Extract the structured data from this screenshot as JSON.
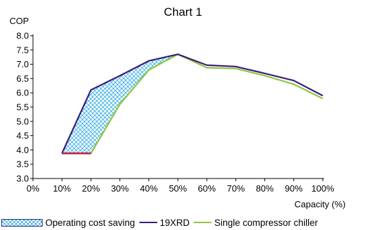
{
  "chart_data": {
    "type": "line",
    "title": "Chart 1",
    "xlabel": "Capacity (%)",
    "ylabel": "COP",
    "x": [
      10,
      20,
      30,
      40,
      50,
      60,
      70,
      80,
      90,
      100
    ],
    "x_ticks": [
      "0%",
      "10%",
      "20%",
      "30%",
      "40%",
      "50%",
      "60%",
      "70%",
      "80%",
      "90%",
      "100%"
    ],
    "y_ticks": [
      "3.0",
      "3.5",
      "4.0",
      "4.5",
      "5.0",
      "5.5",
      "6.0",
      "6.5",
      "7.0",
      "7.5",
      "8.0"
    ],
    "xlim": [
      0,
      100
    ],
    "ylim": [
      3.0,
      8.0
    ],
    "grid": false,
    "legend_position": "bottom",
    "series": [
      {
        "name": "19XRD",
        "values": [
          3.88,
          6.1,
          6.6,
          7.12,
          7.35,
          6.97,
          6.92,
          6.68,
          6.43,
          5.9
        ],
        "color": "#3b1c7a"
      },
      {
        "name": "Single compressor chiller",
        "values": [
          3.88,
          3.88,
          5.6,
          6.8,
          7.35,
          6.88,
          6.85,
          6.6,
          6.3,
          5.8
        ],
        "color": "#8dc63f"
      }
    ],
    "baseline_segment": {
      "x": [
        10,
        20
      ],
      "value": 3.88,
      "color": "#c0143c"
    },
    "shaded_region": {
      "name": "Operating cost saving",
      "between": [
        "19XRD",
        "Single compressor chiller"
      ],
      "x_range": [
        10,
        50
      ],
      "color": "#4bb6e8"
    }
  }
}
